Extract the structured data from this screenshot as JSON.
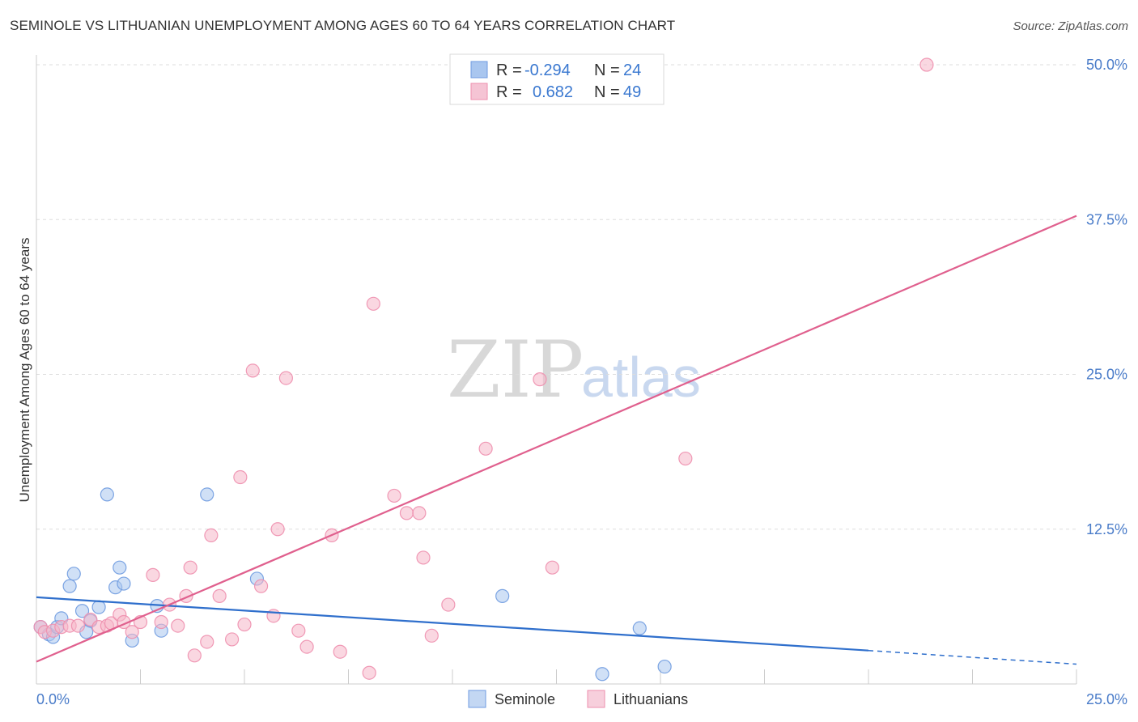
{
  "title": "SEMINOLE VS LITHUANIAN UNEMPLOYMENT AMONG AGES 60 TO 64 YEARS CORRELATION CHART",
  "source": "Source: ZipAtlas.com",
  "watermark": {
    "zip": "ZIP",
    "atlas": "atlas"
  },
  "legend": {
    "rows": [
      {
        "r_label": "R =",
        "r_value": "-0.294",
        "n_label": "N =",
        "n_value": "24",
        "color": "#a9c6ef"
      },
      {
        "r_label": "R =",
        "r_value": "0.682",
        "n_label": "N =",
        "n_value": "49",
        "color": "#f5b6c9"
      }
    ]
  },
  "bottom_legend": [
    "Seminole",
    "Lithuanians"
  ],
  "chart_data": {
    "type": "scatter",
    "title": "SEMINOLE VS LITHUANIAN UNEMPLOYMENT AMONG AGES 60 TO 64 YEARS CORRELATION CHART",
    "xlabel": "",
    "ylabel": "Unemployment Among Ages 60 to 64 years",
    "xlim": [
      0,
      25
    ],
    "ylim": [
      0,
      50
    ],
    "x_tick_labels": [
      "0.0%",
      "25.0%"
    ],
    "y_ticks": [
      12.5,
      25.0,
      37.5,
      50.0
    ],
    "y_tick_labels": [
      "12.5%",
      "25.0%",
      "37.5%",
      "50.0%"
    ],
    "grid": true,
    "series": [
      {
        "name": "Seminole",
        "color": "#6f9be0",
        "fill": "#a9c6ef",
        "line_color": "#2f6fcc",
        "trend": {
          "x0": 0,
          "y0": 7.0,
          "x1": 20,
          "y1": 2.7,
          "dash_to_x": 25,
          "dash_to_y": 1.6
        },
        "points": [
          [
            0.1,
            4.6
          ],
          [
            0.3,
            4.0
          ],
          [
            0.4,
            3.8
          ],
          [
            0.5,
            4.6
          ],
          [
            0.6,
            5.3
          ],
          [
            0.8,
            7.9
          ],
          [
            0.9,
            8.9
          ],
          [
            1.1,
            5.9
          ],
          [
            1.2,
            4.2
          ],
          [
            1.3,
            5.1
          ],
          [
            1.5,
            6.2
          ],
          [
            1.7,
            15.3
          ],
          [
            1.9,
            7.8
          ],
          [
            2.0,
            9.4
          ],
          [
            2.1,
            8.1
          ],
          [
            2.3,
            3.5
          ],
          [
            2.9,
            6.3
          ],
          [
            3.0,
            4.3
          ],
          [
            4.1,
            15.3
          ],
          [
            5.3,
            8.5
          ],
          [
            11.2,
            7.1
          ],
          [
            14.5,
            4.5
          ],
          [
            13.6,
            0.8
          ],
          [
            15.1,
            1.4
          ]
        ]
      },
      {
        "name": "Lithuanians",
        "color": "#ee8fae",
        "fill": "#f5b6c9",
        "line_color": "#e0608e",
        "trend": {
          "x0": 0,
          "y0": 1.8,
          "x1": 25,
          "y1": 37.8
        },
        "points": [
          [
            0.1,
            4.6
          ],
          [
            0.2,
            4.2
          ],
          [
            0.4,
            4.3
          ],
          [
            0.6,
            4.6
          ],
          [
            0.8,
            4.7
          ],
          [
            1.0,
            4.7
          ],
          [
            1.3,
            5.2
          ],
          [
            1.5,
            4.6
          ],
          [
            1.7,
            4.7
          ],
          [
            1.8,
            4.9
          ],
          [
            2.0,
            5.6
          ],
          [
            2.1,
            5.0
          ],
          [
            2.3,
            4.2
          ],
          [
            2.5,
            5.0
          ],
          [
            2.8,
            8.8
          ],
          [
            3.0,
            5.0
          ],
          [
            3.2,
            6.4
          ],
          [
            3.4,
            4.7
          ],
          [
            3.6,
            7.1
          ],
          [
            3.7,
            9.4
          ],
          [
            3.8,
            2.3
          ],
          [
            4.1,
            3.4
          ],
          [
            4.2,
            12.0
          ],
          [
            4.4,
            7.1
          ],
          [
            4.7,
            3.6
          ],
          [
            4.9,
            16.7
          ],
          [
            5.0,
            4.8
          ],
          [
            5.2,
            25.3
          ],
          [
            5.4,
            7.9
          ],
          [
            5.7,
            5.5
          ],
          [
            5.8,
            12.5
          ],
          [
            6.0,
            24.7
          ],
          [
            6.3,
            4.3
          ],
          [
            6.5,
            3.0
          ],
          [
            7.1,
            12.0
          ],
          [
            7.3,
            2.6
          ],
          [
            8.0,
            0.9
          ],
          [
            8.1,
            30.7
          ],
          [
            8.6,
            15.2
          ],
          [
            8.9,
            13.8
          ],
          [
            9.2,
            13.8
          ],
          [
            9.3,
            10.2
          ],
          [
            9.5,
            3.9
          ],
          [
            9.9,
            6.4
          ],
          [
            10.8,
            19.0
          ],
          [
            12.1,
            24.6
          ],
          [
            12.4,
            9.4
          ],
          [
            15.6,
            18.2
          ],
          [
            21.4,
            50.0
          ]
        ]
      }
    ]
  }
}
